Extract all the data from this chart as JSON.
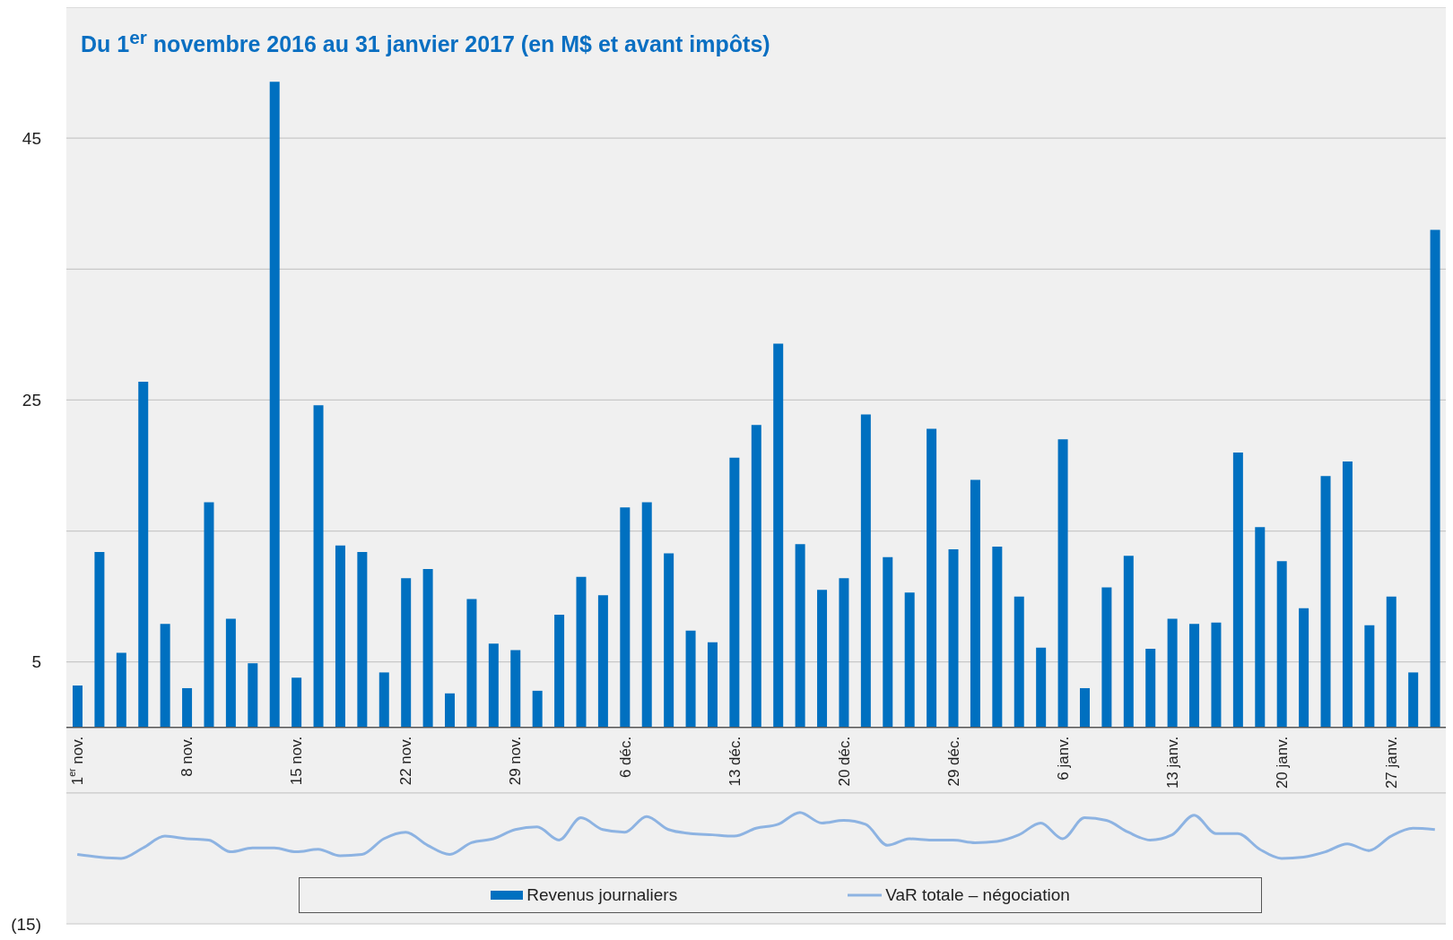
{
  "chart_data": {
    "type": "bar",
    "title": "Du 1$^{er}$ novembre 2016 au 31 janvier 2017 (en M$ et avant impôts)",
    "categories": [
      "1$^{er}$ nov.",
      null,
      null,
      null,
      null,
      "8 nov.",
      null,
      null,
      null,
      null,
      "15 nov.",
      null,
      null,
      null,
      null,
      "22 nov.",
      null,
      null,
      null,
      null,
      "29 nov.",
      null,
      null,
      null,
      null,
      "6 déc.",
      null,
      null,
      null,
      null,
      "13 déc.",
      null,
      null,
      null,
      null,
      "20 déc.",
      null,
      null,
      null,
      null,
      "29 déc.",
      null,
      null,
      null,
      null,
      "6 janv.",
      null,
      null,
      null,
      null,
      "13 janv.",
      null,
      null,
      null,
      null,
      "20 janv.",
      null,
      null,
      null,
      null,
      "27 janv.",
      null,
      null
    ],
    "series": [
      {
        "name": "Revenus journaliers",
        "color": "#0070c0",
        "values": [
          3.2,
          13.4,
          5.7,
          26.4,
          7.9,
          3.0,
          17.2,
          8.3,
          4.9,
          49.3,
          3.8,
          24.6,
          13.9,
          13.4,
          4.2,
          11.4,
          12.1,
          2.6,
          9.8,
          6.4,
          5.9,
          2.8,
          8.6,
          11.5,
          10.1,
          16.8,
          17.2,
          13.3,
          7.4,
          6.5,
          20.6,
          23.1,
          29.3,
          14.0,
          10.5,
          11.4,
          23.9,
          13.0,
          10.3,
          22.8,
          13.6,
          18.9,
          13.8,
          10.0,
          6.1,
          22.0,
          3.0,
          10.7,
          13.1,
          6.0,
          8.3,
          7.9,
          8.0,
          21.0,
          15.3,
          12.7,
          9.1,
          19.2,
          20.3,
          7.8,
          10.0,
          4.2,
          38.0
        ]
      },
      {
        "name": "VaR totale – négociation",
        "type": "line",
        "color": "#8db3e2",
        "values": [
          -9.7,
          -9.9,
          -10.0,
          -9.2,
          -8.3,
          -8.5,
          -8.6,
          -9.5,
          -9.2,
          -9.2,
          -9.5,
          -9.3,
          -9.8,
          -9.7,
          -8.5,
          -8.0,
          -9.0,
          -9.7,
          -8.8,
          -8.5,
          -7.8,
          -7.6,
          -8.6,
          -6.9,
          -7.8,
          -8.0,
          -6.8,
          -7.8,
          -8.1,
          -8.2,
          -8.3,
          -7.7,
          -7.4,
          -6.5,
          -7.3,
          -7.1,
          -7.4,
          -9.0,
          -8.5,
          -8.6,
          -8.6,
          -8.8,
          -8.7,
          -8.2,
          -7.3,
          -8.5,
          -6.9,
          -7.1,
          -8.0,
          -8.6,
          -8.2,
          -6.7,
          -8.1,
          -8.1,
          -9.3,
          -10.0,
          -9.9,
          -9.5,
          -8.9,
          -9.4,
          -8.3,
          -7.7,
          -7.8
        ]
      }
    ],
    "ylim": [
      -15,
      55
    ],
    "yticks": [
      {
        "value": -15,
        "label": "(15)"
      },
      {
        "value": -5,
        "label": null
      },
      {
        "value": 5,
        "label": "5"
      },
      {
        "value": 15,
        "label": null
      },
      {
        "value": 25,
        "label": "25"
      },
      {
        "value": 35,
        "label": null
      },
      {
        "value": 45,
        "label": "45"
      }
    ],
    "grid": "y",
    "legend": "bottom",
    "marker": "none"
  }
}
